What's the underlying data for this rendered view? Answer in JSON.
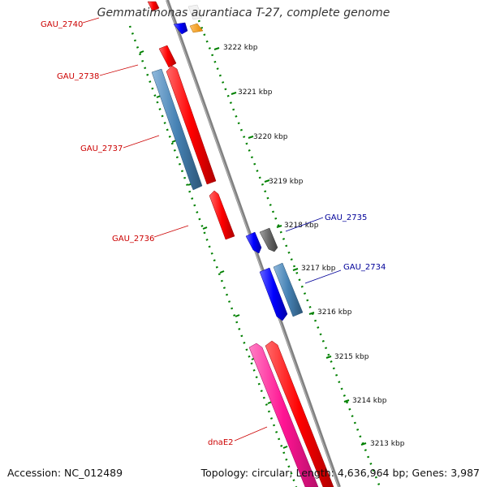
{
  "title": "Gemmatimonas aurantiaca T-27, complete genome",
  "footer": {
    "accession": "Accession: NC_012489",
    "topology": "Topology: circular; Length: 4,636,964 bp; Genes: 3,987"
  },
  "scale": {
    "ticks": [
      "3222 kbp",
      "3221 kbp",
      "3220 kbp",
      "3219 kbp",
      "3218 kbp",
      "3217 kbp",
      "3216 kbp",
      "3215 kbp",
      "3214 kbp",
      "3213 kbp"
    ]
  },
  "genes": [
    {
      "name": "GAU_2740",
      "strand": "+",
      "color": "#ff0000"
    },
    {
      "name": "GAU_2738",
      "strand": "+",
      "color": "#ff0000"
    },
    {
      "name": "GAU_2737",
      "strand": "-",
      "color": "#4682b4"
    },
    {
      "name": "GAU_2736",
      "strand": "+",
      "color": "#ff0000"
    },
    {
      "name": "GAU_2735",
      "strand": "-",
      "color": "#696969"
    },
    {
      "name": "GAU_2734",
      "strand": "-",
      "color": "#4682b4"
    },
    {
      "name": "dnaE2",
      "strand": "+",
      "color": "#ff1493"
    }
  ],
  "colors": {
    "forward_cds": "#ff0000",
    "reverse_cds": "#0000ff",
    "steelblue": "#4682b4",
    "gray": "#696969",
    "pink": "#ff1493",
    "orange": "#ff9900",
    "ruler": "#008000",
    "backbone": "#808080",
    "left_label": "#cc0000",
    "right_label": "#000099"
  }
}
